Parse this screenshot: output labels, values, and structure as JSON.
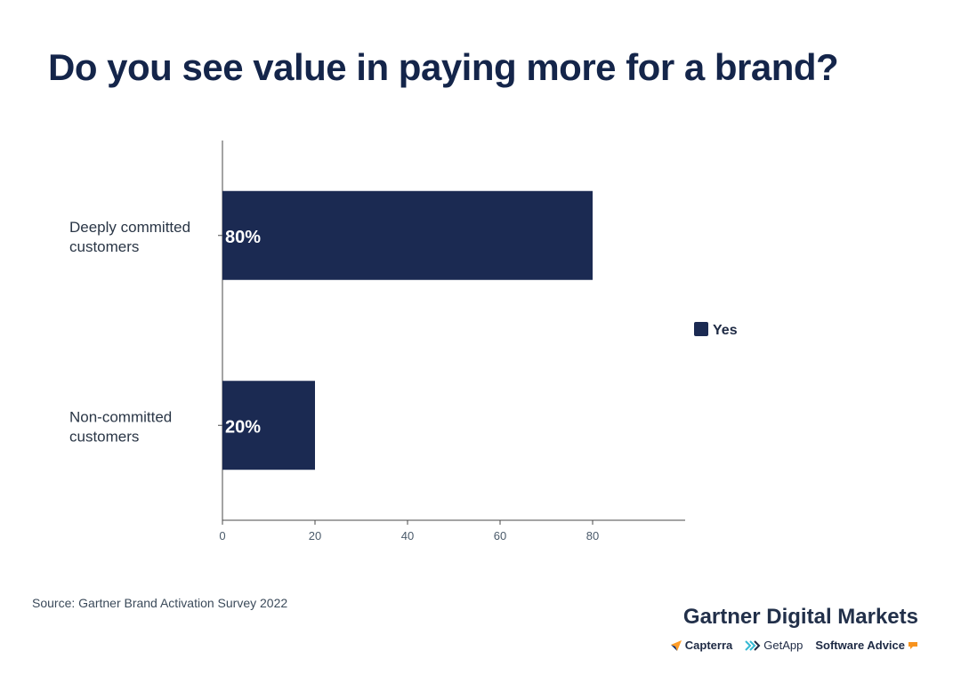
{
  "title": "Do you see value in paying more for a brand?",
  "chart_data": {
    "type": "bar",
    "orientation": "horizontal",
    "categories": [
      "Deeply committed customers",
      "Non-committed customers"
    ],
    "category_lines": [
      [
        "Deeply committed",
        "customers"
      ],
      [
        "Non-committed",
        "customers"
      ]
    ],
    "series": [
      {
        "name": "Yes",
        "values": [
          80,
          20
        ],
        "color": "#1b2a52"
      }
    ],
    "data_labels": [
      "80%",
      "20%"
    ],
    "xlim": [
      0,
      100
    ],
    "xticks": [
      0,
      20,
      40,
      60,
      80
    ],
    "xlabel": "",
    "ylabel": "",
    "legend": {
      "position": "right",
      "entries": [
        "Yes"
      ]
    }
  },
  "source": "Source: Gartner Brand Activation Survey 2022",
  "branding": {
    "main": "Gartner Digital Markets",
    "subs": [
      {
        "name": "Capterra",
        "icon": "capterra-icon",
        "color": "#0a2a6a",
        "accent": "#ff9d28"
      },
      {
        "name": "GetApp",
        "icon": "getapp-icon",
        "color": "#1e2a44",
        "accent": "#35b9d4"
      },
      {
        "name": "Software Advice",
        "icon": "software-advice-icon",
        "color": "#1e2a44",
        "accent": "#f7931e"
      }
    ]
  }
}
